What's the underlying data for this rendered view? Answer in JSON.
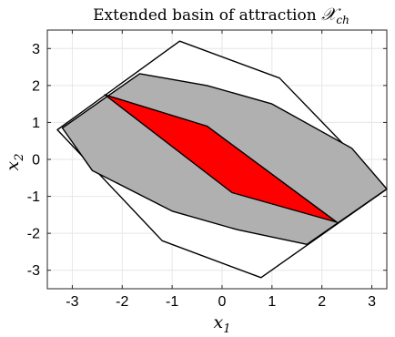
{
  "chart_data": {
    "type": "area",
    "title_main": "Extended basin of attraction ",
    "title_symbol": "𝒳",
    "title_subscript": "ch",
    "xlabel_main": "x",
    "xlabel_sub": "1",
    "ylabel_main": "x",
    "ylabel_sub": "2",
    "xlim": [
      -3.5,
      3.3
    ],
    "ylim": [
      -3.5,
      3.5
    ],
    "xticks": [
      -3,
      -2,
      -1,
      0,
      1,
      2,
      3
    ],
    "yticks": [
      -3,
      -2,
      -1,
      0,
      1,
      2,
      3
    ],
    "xtick_labels": [
      "-3",
      "-2",
      "-1",
      "0",
      "1",
      "2",
      "3"
    ],
    "ytick_labels": [
      "-3",
      "-2",
      "-1",
      "0",
      "1",
      "2",
      "3"
    ],
    "grid": true,
    "regions": [
      {
        "fill": "#ffffff",
        "stroke": "#000000",
        "points": [
          [
            -0.85,
            3.2
          ],
          [
            1.15,
            2.2
          ],
          [
            3.3,
            -0.8
          ],
          [
            0.78,
            -3.2
          ],
          [
            -1.2,
            -2.2
          ],
          [
            -3.3,
            0.8
          ]
        ]
      },
      {
        "fill": "#b0b0b0",
        "stroke": "#000000",
        "points": [
          [
            -1.65,
            2.32
          ],
          [
            -0.3,
            2.0
          ],
          [
            1.0,
            1.5
          ],
          [
            2.6,
            0.3
          ],
          [
            3.3,
            -0.8
          ],
          [
            1.7,
            -2.3
          ],
          [
            0.3,
            -1.9
          ],
          [
            -1.0,
            -1.4
          ],
          [
            -2.6,
            -0.3
          ],
          [
            -3.2,
            0.85
          ]
        ]
      },
      {
        "fill": "#ff0000",
        "stroke": "#000000",
        "points": [
          [
            -2.35,
            1.75
          ],
          [
            -0.3,
            0.9
          ],
          [
            2.3,
            -1.7
          ],
          [
            0.2,
            -0.9
          ]
        ]
      }
    ]
  }
}
